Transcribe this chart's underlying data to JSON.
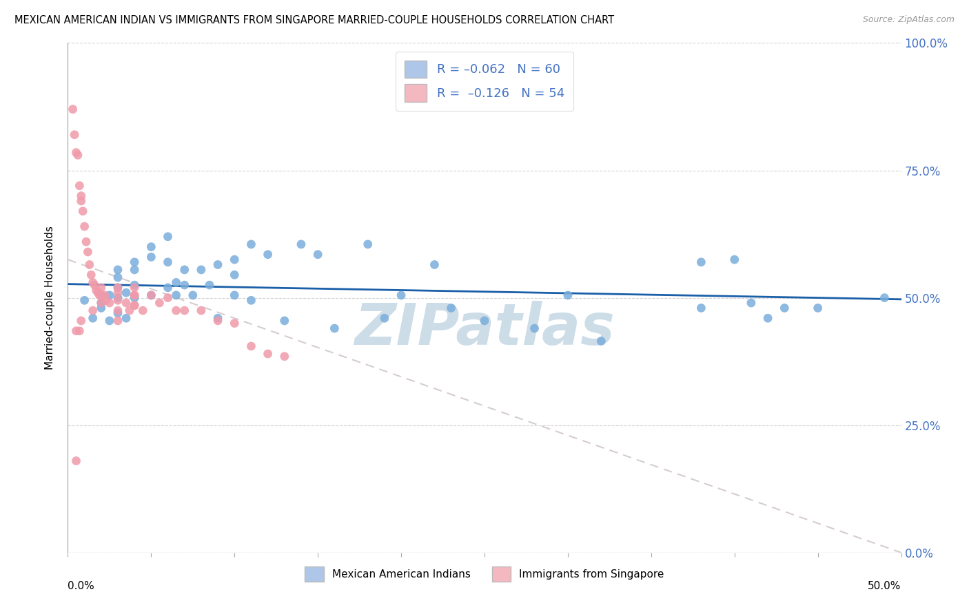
{
  "title": "MEXICAN AMERICAN INDIAN VS IMMIGRANTS FROM SINGAPORE MARRIED-COUPLE HOUSEHOLDS CORRELATION CHART",
  "source": "Source: ZipAtlas.com",
  "ylabel": "Married-couple Households",
  "yticks": [
    "0.0%",
    "25.0%",
    "50.0%",
    "75.0%",
    "100.0%"
  ],
  "ytick_vals": [
    0.0,
    0.25,
    0.5,
    0.75,
    1.0
  ],
  "xtick_labels_bottom": [
    "0.0%",
    "50.0%"
  ],
  "xlim": [
    0.0,
    0.5
  ],
  "ylim": [
    0.0,
    1.0
  ],
  "legend1_color": "#aec6e8",
  "legend2_color": "#f4b8c1",
  "scatter1_color": "#7aaddb",
  "scatter2_color": "#f09aaa",
  "trendline1_color": "#1a5fa8",
  "trendline2_color": "#c8bcc0",
  "watermark": "ZIPatlas",
  "watermark_color": "#ccdde8",
  "blue_trend_x": [
    0.0,
    0.5
  ],
  "blue_trend_y": [
    0.527,
    0.497
  ],
  "pink_trend_x": [
    0.0,
    0.5
  ],
  "pink_trend_y": [
    0.575,
    0.0
  ],
  "blue_points_x": [
    0.01,
    0.015,
    0.02,
    0.02,
    0.02,
    0.025,
    0.025,
    0.03,
    0.03,
    0.03,
    0.03,
    0.03,
    0.035,
    0.035,
    0.04,
    0.04,
    0.04,
    0.04,
    0.05,
    0.05,
    0.05,
    0.06,
    0.06,
    0.06,
    0.065,
    0.065,
    0.07,
    0.07,
    0.075,
    0.08,
    0.085,
    0.09,
    0.09,
    0.1,
    0.1,
    0.1,
    0.11,
    0.11,
    0.12,
    0.13,
    0.14,
    0.15,
    0.16,
    0.18,
    0.19,
    0.2,
    0.22,
    0.23,
    0.25,
    0.28,
    0.3,
    0.32,
    0.38,
    0.4,
    0.41,
    0.42,
    0.45,
    0.49,
    0.38,
    0.43
  ],
  "blue_points_y": [
    0.495,
    0.46,
    0.505,
    0.49,
    0.48,
    0.505,
    0.455,
    0.555,
    0.54,
    0.52,
    0.5,
    0.47,
    0.51,
    0.46,
    0.57,
    0.555,
    0.525,
    0.5,
    0.6,
    0.58,
    0.505,
    0.62,
    0.57,
    0.52,
    0.53,
    0.505,
    0.555,
    0.525,
    0.505,
    0.555,
    0.525,
    0.565,
    0.46,
    0.575,
    0.545,
    0.505,
    0.605,
    0.495,
    0.585,
    0.455,
    0.605,
    0.585,
    0.44,
    0.605,
    0.46,
    0.505,
    0.565,
    0.48,
    0.455,
    0.44,
    0.505,
    0.415,
    0.48,
    0.575,
    0.49,
    0.46,
    0.48,
    0.5,
    0.57,
    0.48
  ],
  "pink_points_x": [
    0.003,
    0.004,
    0.005,
    0.006,
    0.007,
    0.008,
    0.008,
    0.009,
    0.01,
    0.011,
    0.012,
    0.013,
    0.014,
    0.015,
    0.016,
    0.017,
    0.018,
    0.019,
    0.02,
    0.02,
    0.022,
    0.023,
    0.025,
    0.03,
    0.03,
    0.03,
    0.03,
    0.035,
    0.037,
    0.04,
    0.04,
    0.04,
    0.045,
    0.05,
    0.055,
    0.06,
    0.065,
    0.07,
    0.08,
    0.09,
    0.1,
    0.11,
    0.12,
    0.13,
    0.04,
    0.04,
    0.03,
    0.02,
    0.015,
    0.008,
    0.005,
    0.005,
    0.007
  ],
  "pink_points_y": [
    0.87,
    0.82,
    0.785,
    0.78,
    0.72,
    0.7,
    0.69,
    0.67,
    0.64,
    0.61,
    0.59,
    0.565,
    0.545,
    0.53,
    0.525,
    0.515,
    0.51,
    0.505,
    0.52,
    0.505,
    0.505,
    0.495,
    0.49,
    0.52,
    0.51,
    0.495,
    0.475,
    0.49,
    0.475,
    0.52,
    0.505,
    0.485,
    0.475,
    0.505,
    0.49,
    0.5,
    0.475,
    0.475,
    0.475,
    0.455,
    0.45,
    0.405,
    0.39,
    0.385,
    0.505,
    0.485,
    0.455,
    0.49,
    0.475,
    0.455,
    0.435,
    0.18,
    0.435
  ]
}
